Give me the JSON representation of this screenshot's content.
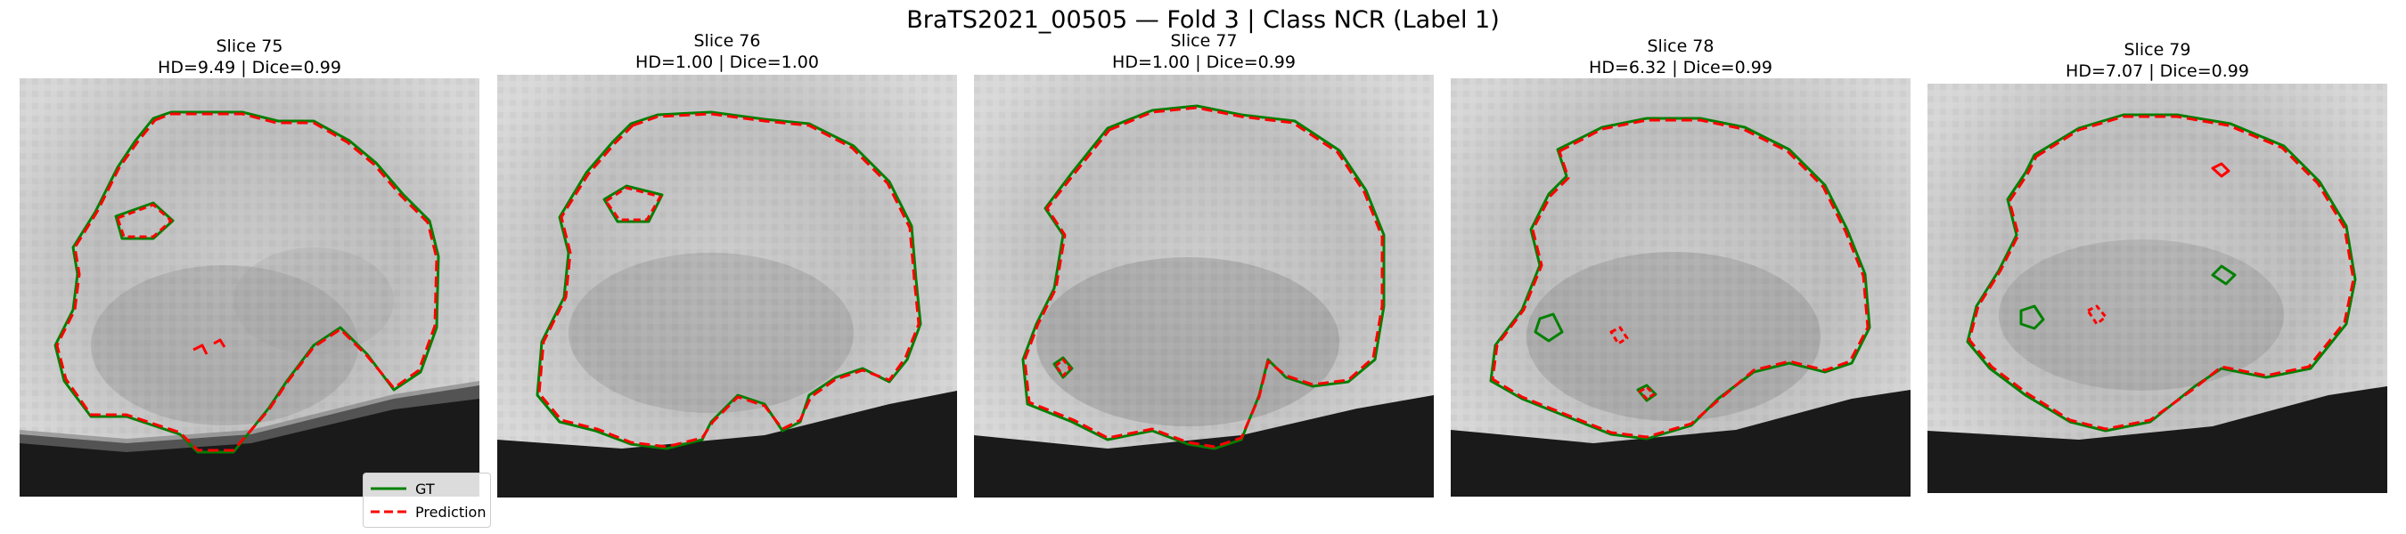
{
  "figure": {
    "suptitle": "BraTS2021_00505 — Fold 3 | Class NCR (Label 1)"
  },
  "colors": {
    "gt": "#008000",
    "prediction": "#ff0000"
  },
  "legend": {
    "gt_label": "GT",
    "prediction_label": "Prediction"
  },
  "panels": [
    {
      "slice": "Slice 75",
      "metrics": "HD=9.49 | Dice=0.99"
    },
    {
      "slice": "Slice 76",
      "metrics": "HD=1.00 | Dice=1.00"
    },
    {
      "slice": "Slice 77",
      "metrics": "HD=1.00 | Dice=0.99"
    },
    {
      "slice": "Slice 78",
      "metrics": "HD=6.32 | Dice=0.99"
    },
    {
      "slice": "Slice 79",
      "metrics": "HD=7.07 | Dice=0.99"
    }
  ]
}
